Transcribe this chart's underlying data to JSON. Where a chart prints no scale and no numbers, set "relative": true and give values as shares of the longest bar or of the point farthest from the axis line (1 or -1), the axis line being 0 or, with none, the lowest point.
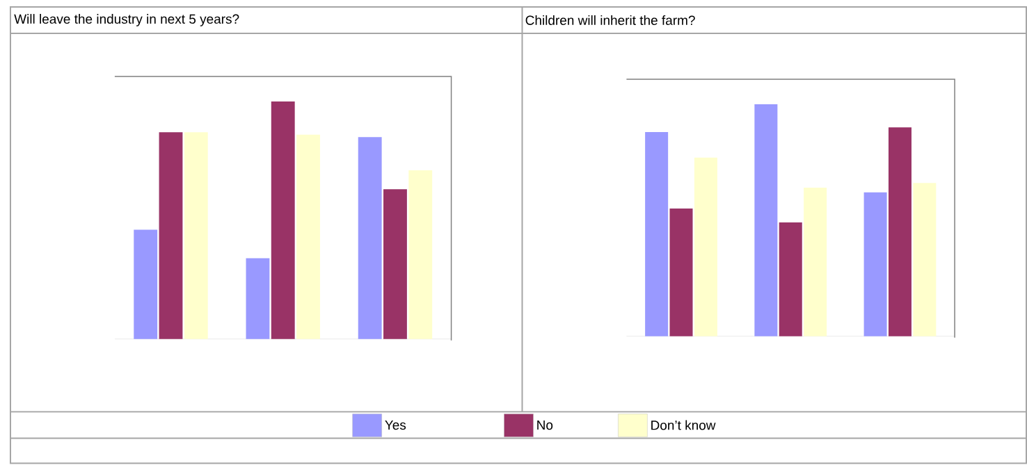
{
  "chart_data": [
    {
      "type": "bar",
      "title": "Will leave the industry in next 5 years?",
      "categories": [
        null,
        null,
        null
      ],
      "relative": true,
      "legend": "bottom",
      "series": [
        {
          "name": "Yes",
          "color": "#9999ff",
          "values": [
            0.46,
            0.34,
            0.85
          ]
        },
        {
          "name": "No",
          "color": "#993366",
          "values": [
            0.87,
            1,
            0.63
          ]
        },
        {
          "name": "Don’t know",
          "color": "#ffffcc",
          "values": [
            0.87,
            0.86,
            0.71
          ]
        }
      ]
    },
    {
      "type": "bar",
      "title": "Children will inherit the farm?",
      "categories": [
        null,
        null,
        null
      ],
      "relative": true,
      "series": [
        {
          "color": "#9999ff",
          "values": [
            0.88,
            1,
            0.62
          ]
        },
        {
          "color": "#993366",
          "values": [
            0.55,
            0.49,
            0.9
          ]
        },
        {
          "color": "#ffffcc",
          "values": [
            0.77,
            0.64,
            0.66
          ]
        }
      ]
    }
  ]
}
